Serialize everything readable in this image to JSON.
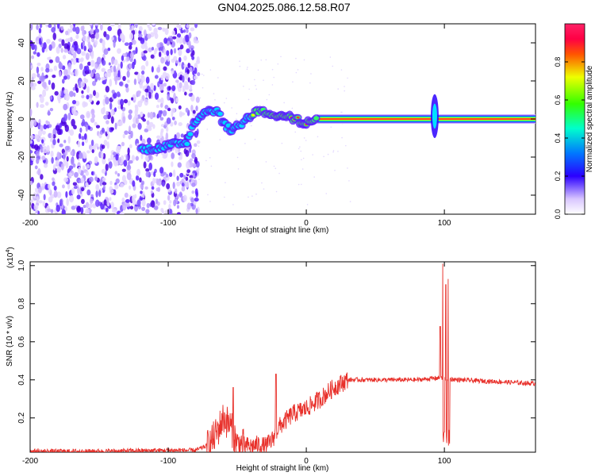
{
  "title": "GN04.2025.086.12.58.R07",
  "colors": {
    "trace": "#e8302a",
    "axis": "#000000"
  },
  "chart_data": [
    {
      "type": "heatmap",
      "name": "spectrogram",
      "xlabel": "Height of straight line (km)",
      "ylabel": "Frequency (Hz)",
      "xlim": [
        -200,
        166
      ],
      "ylim": [
        -50,
        50
      ],
      "x_ticks": [
        -200,
        -100,
        0,
        100
      ],
      "y_ticks": [
        -40,
        -20,
        0,
        20,
        40
      ],
      "noise_region_x": [
        -200,
        -78
      ],
      "ridge": [
        {
          "x": -120,
          "y": -16
        },
        {
          "x": -105,
          "y": -15
        },
        {
          "x": -95,
          "y": -13
        },
        {
          "x": -86,
          "y": -12
        },
        {
          "x": -82,
          "y": -2
        },
        {
          "x": -76,
          "y": 2
        },
        {
          "x": -70,
          "y": 5
        },
        {
          "x": -64,
          "y": 4
        },
        {
          "x": -60,
          "y": -2
        },
        {
          "x": -55,
          "y": -6
        },
        {
          "x": -48,
          "y": -3
        },
        {
          "x": -42,
          "y": 1
        },
        {
          "x": -36,
          "y": 4
        },
        {
          "x": -30,
          "y": 4
        },
        {
          "x": -24,
          "y": 2
        },
        {
          "x": -16,
          "y": 1
        },
        {
          "x": -8,
          "y": 0
        },
        {
          "x": 0,
          "y": -2
        },
        {
          "x": 6,
          "y": 0
        },
        {
          "x": 12,
          "y": 0
        },
        {
          "x": 50,
          "y": 0
        },
        {
          "x": 88,
          "y": 0
        },
        {
          "x": 96,
          "y": 0
        },
        {
          "x": 130,
          "y": 0
        },
        {
          "x": 166,
          "y": 0
        }
      ],
      "burst": {
        "x": 93,
        "y_range": [
          -10,
          13
        ]
      }
    },
    {
      "type": "colorbar",
      "name": "colorbar",
      "label": "Normalized spectral amplitude",
      "range": [
        0,
        1
      ],
      "ticks": [
        "0.0",
        "0.2",
        "0.4",
        "0.6",
        "0.8"
      ],
      "tick_values": [
        0,
        0.2,
        0.4,
        0.6,
        0.8
      ]
    },
    {
      "type": "line",
      "name": "snr",
      "xlabel": "Height of straight line (km)",
      "ylabel": "SNR (10 * v/v)",
      "scale_label": "(x10",
      "scale_exp": "4",
      "xlim": [
        -200,
        166
      ],
      "ylim": [
        0.02,
        1.02
      ],
      "x_ticks": [
        -200,
        -100,
        0,
        100
      ],
      "y_ticks": [
        0.2,
        0.4,
        0.6,
        0.8,
        1.0
      ],
      "y_tick_labels": [
        "0.2",
        "0.4",
        "0.6",
        "0.8",
        "1.0"
      ],
      "envelope": [
        {
          "x": -200,
          "y": 0.025
        },
        {
          "x": -150,
          "y": 0.025
        },
        {
          "x": -100,
          "y": 0.03
        },
        {
          "x": -80,
          "y": 0.03
        },
        {
          "x": -70,
          "y": 0.06
        },
        {
          "x": -65,
          "y": 0.12
        },
        {
          "x": -60,
          "y": 0.2
        },
        {
          "x": -55,
          "y": 0.16
        },
        {
          "x": -50,
          "y": 0.06
        },
        {
          "x": -40,
          "y": 0.05
        },
        {
          "x": -35,
          "y": 0.06
        },
        {
          "x": -30,
          "y": 0.05
        },
        {
          "x": -25,
          "y": 0.08
        },
        {
          "x": -20,
          "y": 0.15
        },
        {
          "x": -10,
          "y": 0.22
        },
        {
          "x": 0,
          "y": 0.25
        },
        {
          "x": 10,
          "y": 0.3
        },
        {
          "x": 20,
          "y": 0.36
        },
        {
          "x": 30,
          "y": 0.4
        },
        {
          "x": 40,
          "y": 0.4
        },
        {
          "x": 60,
          "y": 0.4
        },
        {
          "x": 80,
          "y": 0.4
        },
        {
          "x": 95,
          "y": 0.41
        },
        {
          "x": 110,
          "y": 0.4
        },
        {
          "x": 140,
          "y": 0.39
        },
        {
          "x": 166,
          "y": 0.38
        }
      ],
      "spikes": [
        {
          "x": -53,
          "y": 0.36
        },
        {
          "x": -22,
          "y": 0.43
        },
        {
          "x": 97,
          "y": 0.68
        },
        {
          "x": 99,
          "y": 1.01
        },
        {
          "x": 101,
          "y": 0.9
        },
        {
          "x": 103,
          "y": 0.93
        }
      ]
    }
  ]
}
